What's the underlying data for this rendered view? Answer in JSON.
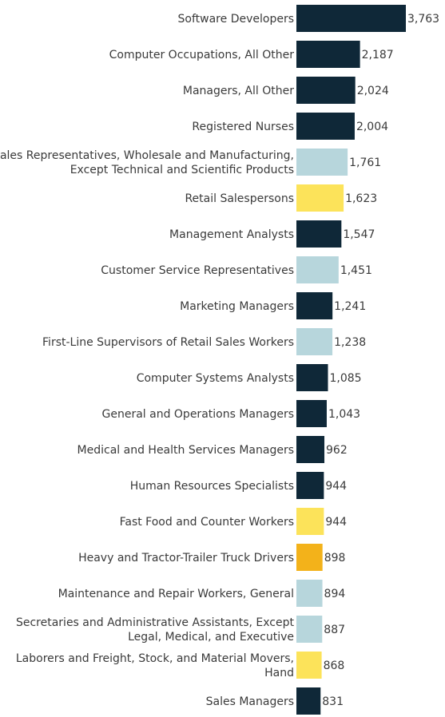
{
  "chart_data": {
    "type": "bar",
    "orientation": "horizontal",
    "categories": [
      [
        "Software Developers"
      ],
      [
        "Computer Occupations, All Other"
      ],
      [
        "Managers, All Other"
      ],
      [
        "Registered Nurses"
      ],
      [
        "Sales Representatives, Wholesale and Manufacturing,",
        "Except Technical and Scientific Products"
      ],
      [
        "Retail Salespersons"
      ],
      [
        "Management Analysts"
      ],
      [
        "Customer Service Representatives"
      ],
      [
        "Marketing Managers"
      ],
      [
        "First-Line Supervisors of Retail Sales Workers"
      ],
      [
        "Computer Systems Analysts"
      ],
      [
        "General and Operations Managers"
      ],
      [
        "Medical and Health Services Managers"
      ],
      [
        "Human Resources Specialists"
      ],
      [
        "Fast Food and Counter Workers"
      ],
      [
        "Heavy and Tractor-Trailer Truck Drivers"
      ],
      [
        "Maintenance and Repair Workers, General"
      ],
      [
        "Secretaries and Administrative Assistants, Except",
        "Legal, Medical, and Executive"
      ],
      [
        "Laborers and Freight, Stock, and Material Movers,",
        "Hand"
      ],
      [
        "Sales Managers"
      ]
    ],
    "values": [
      3763,
      2187,
      2024,
      2004,
      1761,
      1623,
      1547,
      1451,
      1241,
      1238,
      1085,
      1043,
      962,
      944,
      944,
      898,
      894,
      887,
      868,
      831
    ],
    "value_labels": [
      "3,763",
      "2,187",
      "2,024",
      "2,004",
      "1,761",
      "1,623",
      "1,547",
      "1,451",
      "1,241",
      "1,238",
      "1,085",
      "1,043",
      "962",
      "944",
      "944",
      "898",
      "894",
      "887",
      "868",
      "831"
    ],
    "colors": [
      "#0f2838",
      "#0f2838",
      "#0f2838",
      "#0f2838",
      "#b7d6dc",
      "#fce35a",
      "#0f2838",
      "#b7d6dc",
      "#0f2838",
      "#b7d6dc",
      "#0f2838",
      "#0f2838",
      "#0f2838",
      "#0f2838",
      "#fce35a",
      "#f3b21a",
      "#b7d6dc",
      "#b7d6dc",
      "#fce35a",
      "#0f2838"
    ],
    "xlim": [
      0,
      3763
    ],
    "title": "",
    "xlabel": "",
    "ylabel": "",
    "grid": false,
    "legend": "none"
  }
}
